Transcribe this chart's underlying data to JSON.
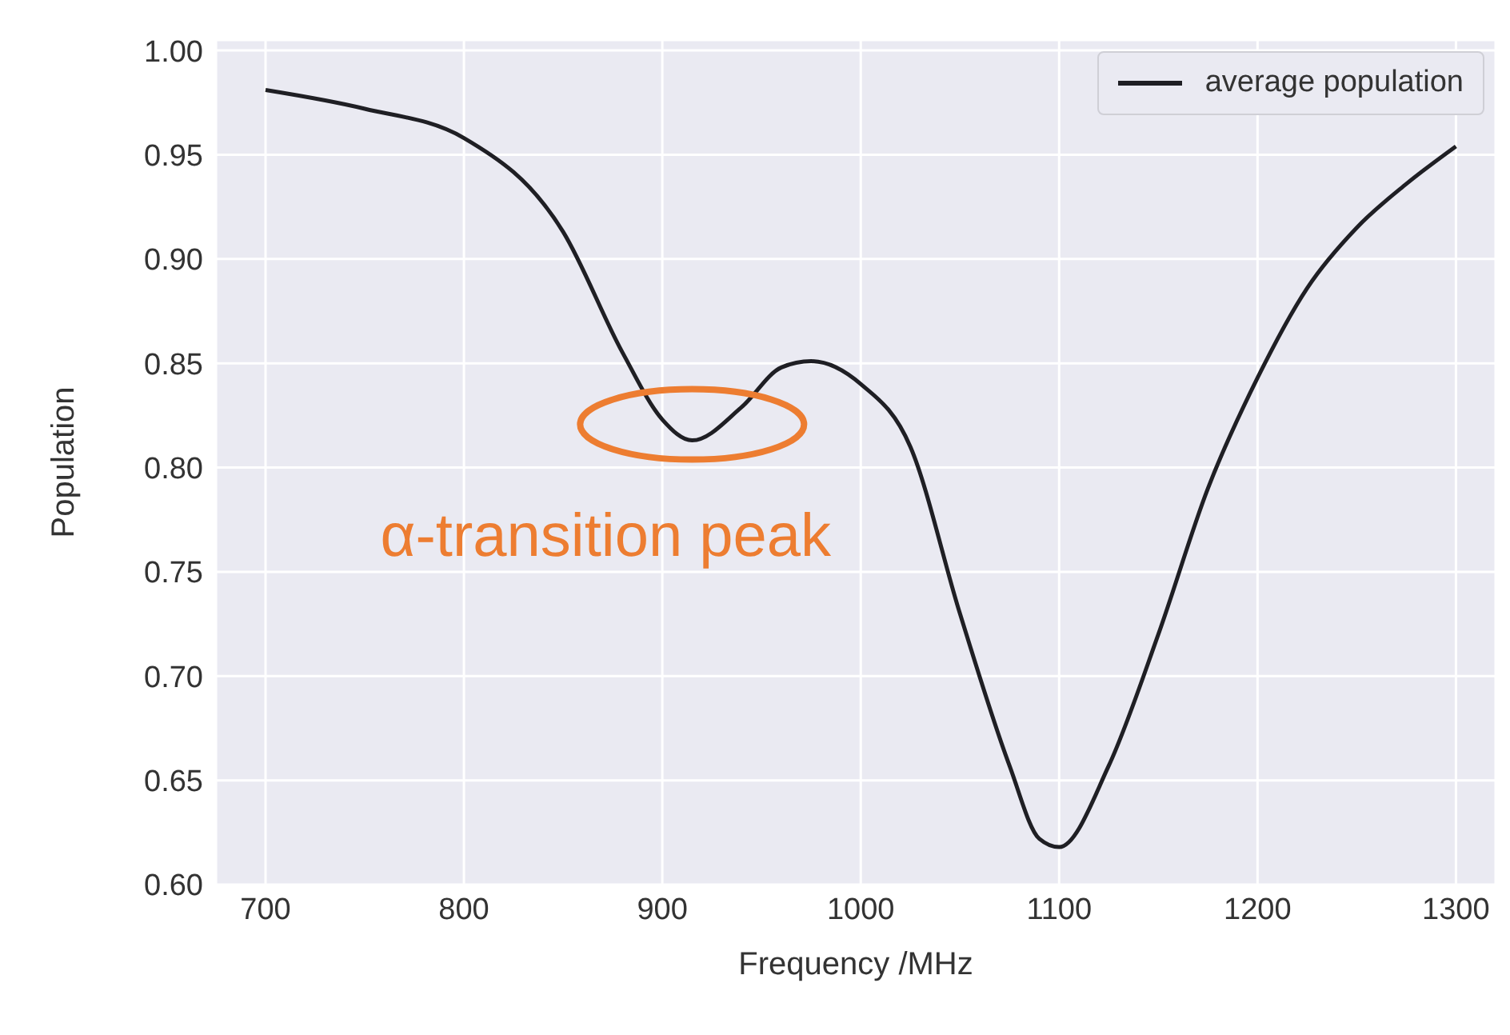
{
  "chart_data": {
    "type": "line",
    "xlabel": "Frequency /MHz",
    "ylabel": "Population",
    "x": [
      700,
      750,
      800,
      850,
      880,
      900,
      915,
      940,
      960,
      975,
      1000,
      1025,
      1050,
      1075,
      1090,
      1100,
      1125,
      1150,
      1175,
      1200,
      1225,
      1250,
      1275,
      1300
    ],
    "series": [
      {
        "name": "average population",
        "color": "#1f1f24",
        "values": [
          0.981,
          0.972,
          0.958,
          0.913,
          0.855,
          0.823,
          0.813,
          0.829,
          0.848,
          0.851,
          0.84,
          0.81,
          0.73,
          0.657,
          0.622,
          0.618,
          0.657,
          0.72,
          0.79,
          0.843,
          0.886,
          0.915,
          0.936,
          0.954
        ]
      }
    ],
    "xlim": [
      675,
      1320
    ],
    "xticks": [
      700,
      800,
      900,
      1000,
      1100,
      1200,
      1300
    ],
    "ylim": [
      0.6,
      1.005
    ],
    "yticks": [
      {
        "value": 0.6,
        "label": "0.60"
      },
      0.65,
      {
        "value": 0.7,
        "label": "0.70"
      },
      0.75,
      {
        "value": 0.8,
        "label": "0.80"
      },
      0.85,
      {
        "value": 0.9,
        "label": "0.90"
      },
      0.95,
      {
        "value": 1.0,
        "label": "1.00"
      }
    ],
    "grid": true,
    "legend": "top right",
    "marker": "none",
    "line_style": "solid",
    "annotations": [
      {
        "text": "α-transition peak",
        "x": 915,
        "y": 0.813
      }
    ]
  }
}
